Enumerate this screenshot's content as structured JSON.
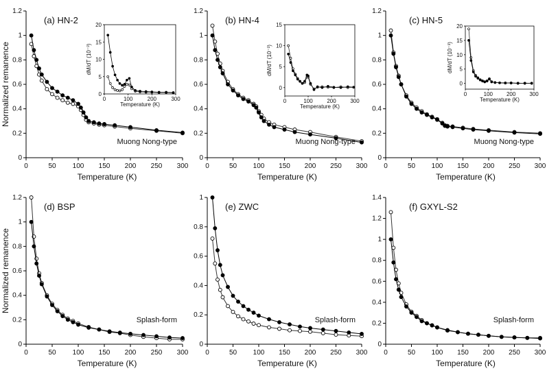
{
  "figure": {
    "x_label": "Temperature (K)",
    "y_label": "Normalized remanence",
    "inset_x_label": "Temperature (K)",
    "inset_y_label": "dM/dT (10⁻³)"
  },
  "chart_data": [
    {
      "type": "line",
      "id": "a",
      "title": "(a) HN-2",
      "annotation": "Muong Nong-type",
      "xlabel": "Temperature (K)",
      "ylabel": "Normalized remanence",
      "xlim": [
        0,
        300
      ],
      "ylim": [
        0,
        1.2
      ],
      "xticks": [
        0,
        50,
        100,
        150,
        200,
        250,
        300
      ],
      "yticks": [
        0,
        0.2,
        0.4,
        0.6,
        0.8,
        1,
        1.2
      ],
      "x": [
        10,
        15,
        20,
        25,
        30,
        40,
        50,
        60,
        70,
        80,
        90,
        100,
        105,
        110,
        115,
        120,
        130,
        140,
        150,
        170,
        200,
        250,
        300
      ],
      "series": [
        {
          "name": "filled",
          "marker": "filled",
          "values": [
            1.0,
            0.88,
            0.8,
            0.73,
            0.68,
            0.62,
            0.57,
            0.54,
            0.51,
            0.49,
            0.47,
            0.44,
            0.41,
            0.37,
            0.33,
            0.3,
            0.29,
            0.28,
            0.275,
            0.265,
            0.25,
            0.225,
            0.205
          ]
        },
        {
          "name": "open",
          "marker": "open",
          "values": [
            0.93,
            0.83,
            0.75,
            0.68,
            0.63,
            0.56,
            0.52,
            0.49,
            0.47,
            0.45,
            0.44,
            0.42,
            0.39,
            0.35,
            0.31,
            0.29,
            0.28,
            0.27,
            0.265,
            0.255,
            0.24,
            0.22,
            0.2
          ]
        }
      ],
      "inset": {
        "xlim": [
          0,
          300
        ],
        "ylim": [
          0,
          20
        ],
        "xticks": [
          0,
          100,
          200,
          300
        ],
        "yticks": [
          0,
          5,
          10,
          15,
          20
        ],
        "x": [
          15,
          25,
          35,
          45,
          55,
          65,
          75,
          85,
          95,
          105,
          115,
          130,
          150,
          175,
          200,
          230,
          260,
          290
        ],
        "series": [
          {
            "name": "filled",
            "marker": "filled",
            "values": [
              17,
              12,
              8,
              5.5,
              4,
              3,
              2.5,
              2.8,
              4,
              4.5,
              2,
              1,
              0.8,
              0.7,
              0.6,
              0.5,
              0.5,
              0.4
            ]
          },
          {
            "name": "open",
            "marker": "open",
            "values": [
              5,
              3,
              1.8,
              1.2,
              1,
              0.9,
              1.2,
              2.2,
              2.8,
              2.6,
              1.5,
              0.8,
              0.6,
              0.5,
              0.5,
              0.4,
              0.4,
              0.3
            ]
          }
        ]
      }
    },
    {
      "type": "line",
      "id": "b",
      "title": "(b) HN-4",
      "annotation": "Muong Nong-type",
      "xlabel": "Temperature (K)",
      "ylabel": "",
      "xlim": [
        0,
        300
      ],
      "ylim": [
        0,
        1.2
      ],
      "xticks": [
        0,
        50,
        100,
        150,
        200,
        250,
        300
      ],
      "yticks": [
        0,
        0.2,
        0.4,
        0.6,
        0.8,
        1,
        1.2
      ],
      "x": [
        10,
        15,
        20,
        25,
        30,
        40,
        50,
        60,
        70,
        80,
        90,
        95,
        100,
        105,
        110,
        120,
        130,
        150,
        170,
        200,
        250,
        300
      ],
      "series": [
        {
          "name": "filled",
          "marker": "filled",
          "values": [
            1.0,
            0.88,
            0.8,
            0.74,
            0.69,
            0.6,
            0.55,
            0.51,
            0.48,
            0.46,
            0.43,
            0.41,
            0.37,
            0.33,
            0.3,
            0.27,
            0.25,
            0.23,
            0.21,
            0.19,
            0.16,
            0.125
          ]
        },
        {
          "name": "open",
          "marker": "open",
          "values": [
            1.08,
            0.95,
            0.85,
            0.77,
            0.71,
            0.62,
            0.56,
            0.52,
            0.49,
            0.47,
            0.44,
            0.42,
            0.38,
            0.35,
            0.32,
            0.29,
            0.27,
            0.25,
            0.23,
            0.21,
            0.17,
            0.135
          ]
        }
      ],
      "inset": {
        "xlim": [
          0,
          300
        ],
        "ylim": [
          -2,
          15
        ],
        "xticks": [
          0,
          100,
          200,
          300
        ],
        "yticks": [
          0,
          5,
          10,
          15
        ],
        "x": [
          15,
          25,
          35,
          45,
          55,
          65,
          75,
          85,
          95,
          100,
          110,
          125,
          140,
          160,
          185,
          210,
          240,
          270,
          295
        ],
        "series": [
          {
            "name": "filled",
            "marker": "filled",
            "values": [
              8,
              6,
              4,
              3,
              2,
              1.5,
              1,
              1.5,
              3,
              2.8,
              1,
              -0.5,
              0.2,
              0,
              0.3,
              0.1,
              0,
              0.2,
              0.1
            ]
          },
          {
            "name": "open",
            "marker": "open",
            "values": [
              10,
              7,
              4.5,
              3.2,
              2.2,
              1.5,
              1,
              1.2,
              2.5,
              2.5,
              0.8,
              -0.3,
              0.1,
              0.2,
              0.1,
              0,
              0.2,
              0,
              0.1
            ]
          }
        ]
      }
    },
    {
      "type": "line",
      "id": "c",
      "title": "(c) HN-5",
      "annotation": "Muong Nong-type",
      "xlabel": "Temperature (K)",
      "ylabel": "",
      "xlim": [
        0,
        300
      ],
      "ylim": [
        0,
        1.2
      ],
      "xticks": [
        0,
        50,
        100,
        150,
        200,
        250,
        300
      ],
      "yticks": [
        0,
        0.2,
        0.4,
        0.6,
        0.8,
        1,
        1.2
      ],
      "x": [
        10,
        15,
        20,
        25,
        30,
        40,
        50,
        60,
        70,
        80,
        90,
        100,
        110,
        115,
        120,
        130,
        150,
        170,
        200,
        250,
        300
      ],
      "series": [
        {
          "name": "filled",
          "marker": "filled",
          "values": [
            1.0,
            0.85,
            0.74,
            0.66,
            0.6,
            0.5,
            0.44,
            0.4,
            0.37,
            0.35,
            0.33,
            0.31,
            0.28,
            0.26,
            0.255,
            0.25,
            0.24,
            0.23,
            0.22,
            0.205,
            0.195
          ]
        },
        {
          "name": "open",
          "marker": "open",
          "values": [
            1.04,
            0.86,
            0.75,
            0.67,
            0.6,
            0.51,
            0.45,
            0.41,
            0.38,
            0.355,
            0.335,
            0.315,
            0.285,
            0.265,
            0.26,
            0.255,
            0.245,
            0.235,
            0.225,
            0.21,
            0.2
          ]
        }
      ],
      "inset": {
        "xlim": [
          0,
          300
        ],
        "ylim": [
          -2,
          20
        ],
        "xticks": [
          0,
          100,
          200,
          300
        ],
        "yticks": [
          0,
          5,
          10,
          15,
          20
        ],
        "x": [
          15,
          25,
          35,
          45,
          55,
          65,
          75,
          85,
          95,
          105,
          115,
          130,
          150,
          175,
          200,
          230,
          260,
          290
        ],
        "series": [
          {
            "name": "filled",
            "marker": "filled",
            "values": [
              15,
              8,
              4,
              2.5,
              1.8,
              1.2,
              0.8,
              0.5,
              0.8,
              1.5,
              0.5,
              0.3,
              0.2,
              0.1,
              0.2,
              0,
              0.1,
              0
            ]
          },
          {
            "name": "open",
            "marker": "open",
            "values": [
              19,
              9,
              4.5,
              2.8,
              2,
              1.3,
              0.9,
              0.6,
              0.9,
              1.6,
              0.6,
              0.3,
              0.2,
              0.2,
              0.1,
              0.1,
              0,
              0.1
            ]
          }
        ]
      }
    },
    {
      "type": "line",
      "id": "d",
      "title": "(d) BSP",
      "annotation": "Splash-form",
      "xlabel": "Temperature (K)",
      "ylabel": "Normalized remanence",
      "xlim": [
        0,
        300
      ],
      "ylim": [
        0,
        1.2
      ],
      "xticks": [
        0,
        50,
        100,
        150,
        200,
        250,
        300
      ],
      "yticks": [
        0,
        0.2,
        0.4,
        0.6,
        0.8,
        1,
        1.2
      ],
      "x": [
        10,
        15,
        20,
        25,
        30,
        40,
        50,
        60,
        70,
        80,
        90,
        100,
        120,
        140,
        160,
        180,
        200,
        225,
        250,
        275,
        300
      ],
      "series": [
        {
          "name": "filled",
          "marker": "filled",
          "values": [
            1.0,
            0.8,
            0.66,
            0.56,
            0.49,
            0.39,
            0.32,
            0.27,
            0.23,
            0.2,
            0.18,
            0.16,
            0.135,
            0.12,
            0.105,
            0.095,
            0.085,
            0.075,
            0.065,
            0.055,
            0.05
          ]
        },
        {
          "name": "open",
          "marker": "open",
          "values": [
            1.2,
            0.88,
            0.7,
            0.58,
            0.5,
            0.4,
            0.33,
            0.28,
            0.24,
            0.21,
            0.19,
            0.17,
            0.14,
            0.12,
            0.1,
            0.09,
            0.075,
            0.06,
            0.05,
            0.04,
            0.04
          ]
        }
      ]
    },
    {
      "type": "line",
      "id": "e",
      "title": "(e) ZWC",
      "annotation": "Splash-form",
      "xlabel": "Temperature (K)",
      "ylabel": "",
      "xlim": [
        0,
        300
      ],
      "ylim": [
        0,
        1
      ],
      "xticks": [
        0,
        50,
        100,
        150,
        200,
        250,
        300
      ],
      "yticks": [
        0,
        0.2,
        0.4,
        0.6,
        0.8,
        1
      ],
      "x": [
        10,
        15,
        20,
        25,
        30,
        40,
        50,
        60,
        70,
        80,
        90,
        100,
        120,
        140,
        160,
        180,
        200,
        225,
        250,
        275,
        300
      ],
      "series": [
        {
          "name": "filled",
          "marker": "filled",
          "values": [
            1.0,
            0.79,
            0.64,
            0.54,
            0.47,
            0.39,
            0.33,
            0.29,
            0.26,
            0.235,
            0.215,
            0.195,
            0.17,
            0.15,
            0.135,
            0.12,
            0.11,
            0.1,
            0.09,
            0.08,
            0.07
          ]
        },
        {
          "name": "open",
          "marker": "open",
          "values": [
            0.72,
            0.55,
            0.44,
            0.37,
            0.32,
            0.26,
            0.22,
            0.19,
            0.17,
            0.155,
            0.14,
            0.13,
            0.115,
            0.105,
            0.095,
            0.09,
            0.085,
            0.075,
            0.065,
            0.06,
            0.055
          ]
        }
      ]
    },
    {
      "type": "line",
      "id": "f",
      "title": "(f) GXYL-S2",
      "annotation": "Splash-form",
      "xlabel": "Temperature (K)",
      "ylabel": "",
      "xlim": [
        0,
        300
      ],
      "ylim": [
        0,
        1.4
      ],
      "xticks": [
        0,
        50,
        100,
        150,
        200,
        250,
        300
      ],
      "yticks": [
        0,
        0.2,
        0.4,
        0.6,
        0.8,
        1,
        1.2,
        1.4
      ],
      "x": [
        10,
        15,
        20,
        25,
        30,
        40,
        50,
        60,
        70,
        80,
        90,
        100,
        120,
        140,
        160,
        180,
        200,
        225,
        250,
        275,
        300
      ],
      "series": [
        {
          "name": "filled",
          "marker": "filled",
          "values": [
            1.0,
            0.78,
            0.62,
            0.52,
            0.45,
            0.36,
            0.3,
            0.26,
            0.22,
            0.2,
            0.18,
            0.16,
            0.135,
            0.115,
            0.1,
            0.09,
            0.08,
            0.07,
            0.065,
            0.06,
            0.055
          ]
        },
        {
          "name": "open",
          "marker": "open",
          "values": [
            1.26,
            0.92,
            0.71,
            0.58,
            0.49,
            0.38,
            0.31,
            0.27,
            0.23,
            0.2,
            0.18,
            0.16,
            0.13,
            0.115,
            0.1,
            0.09,
            0.08,
            0.07,
            0.065,
            0.06,
            0.06
          ]
        }
      ]
    }
  ]
}
